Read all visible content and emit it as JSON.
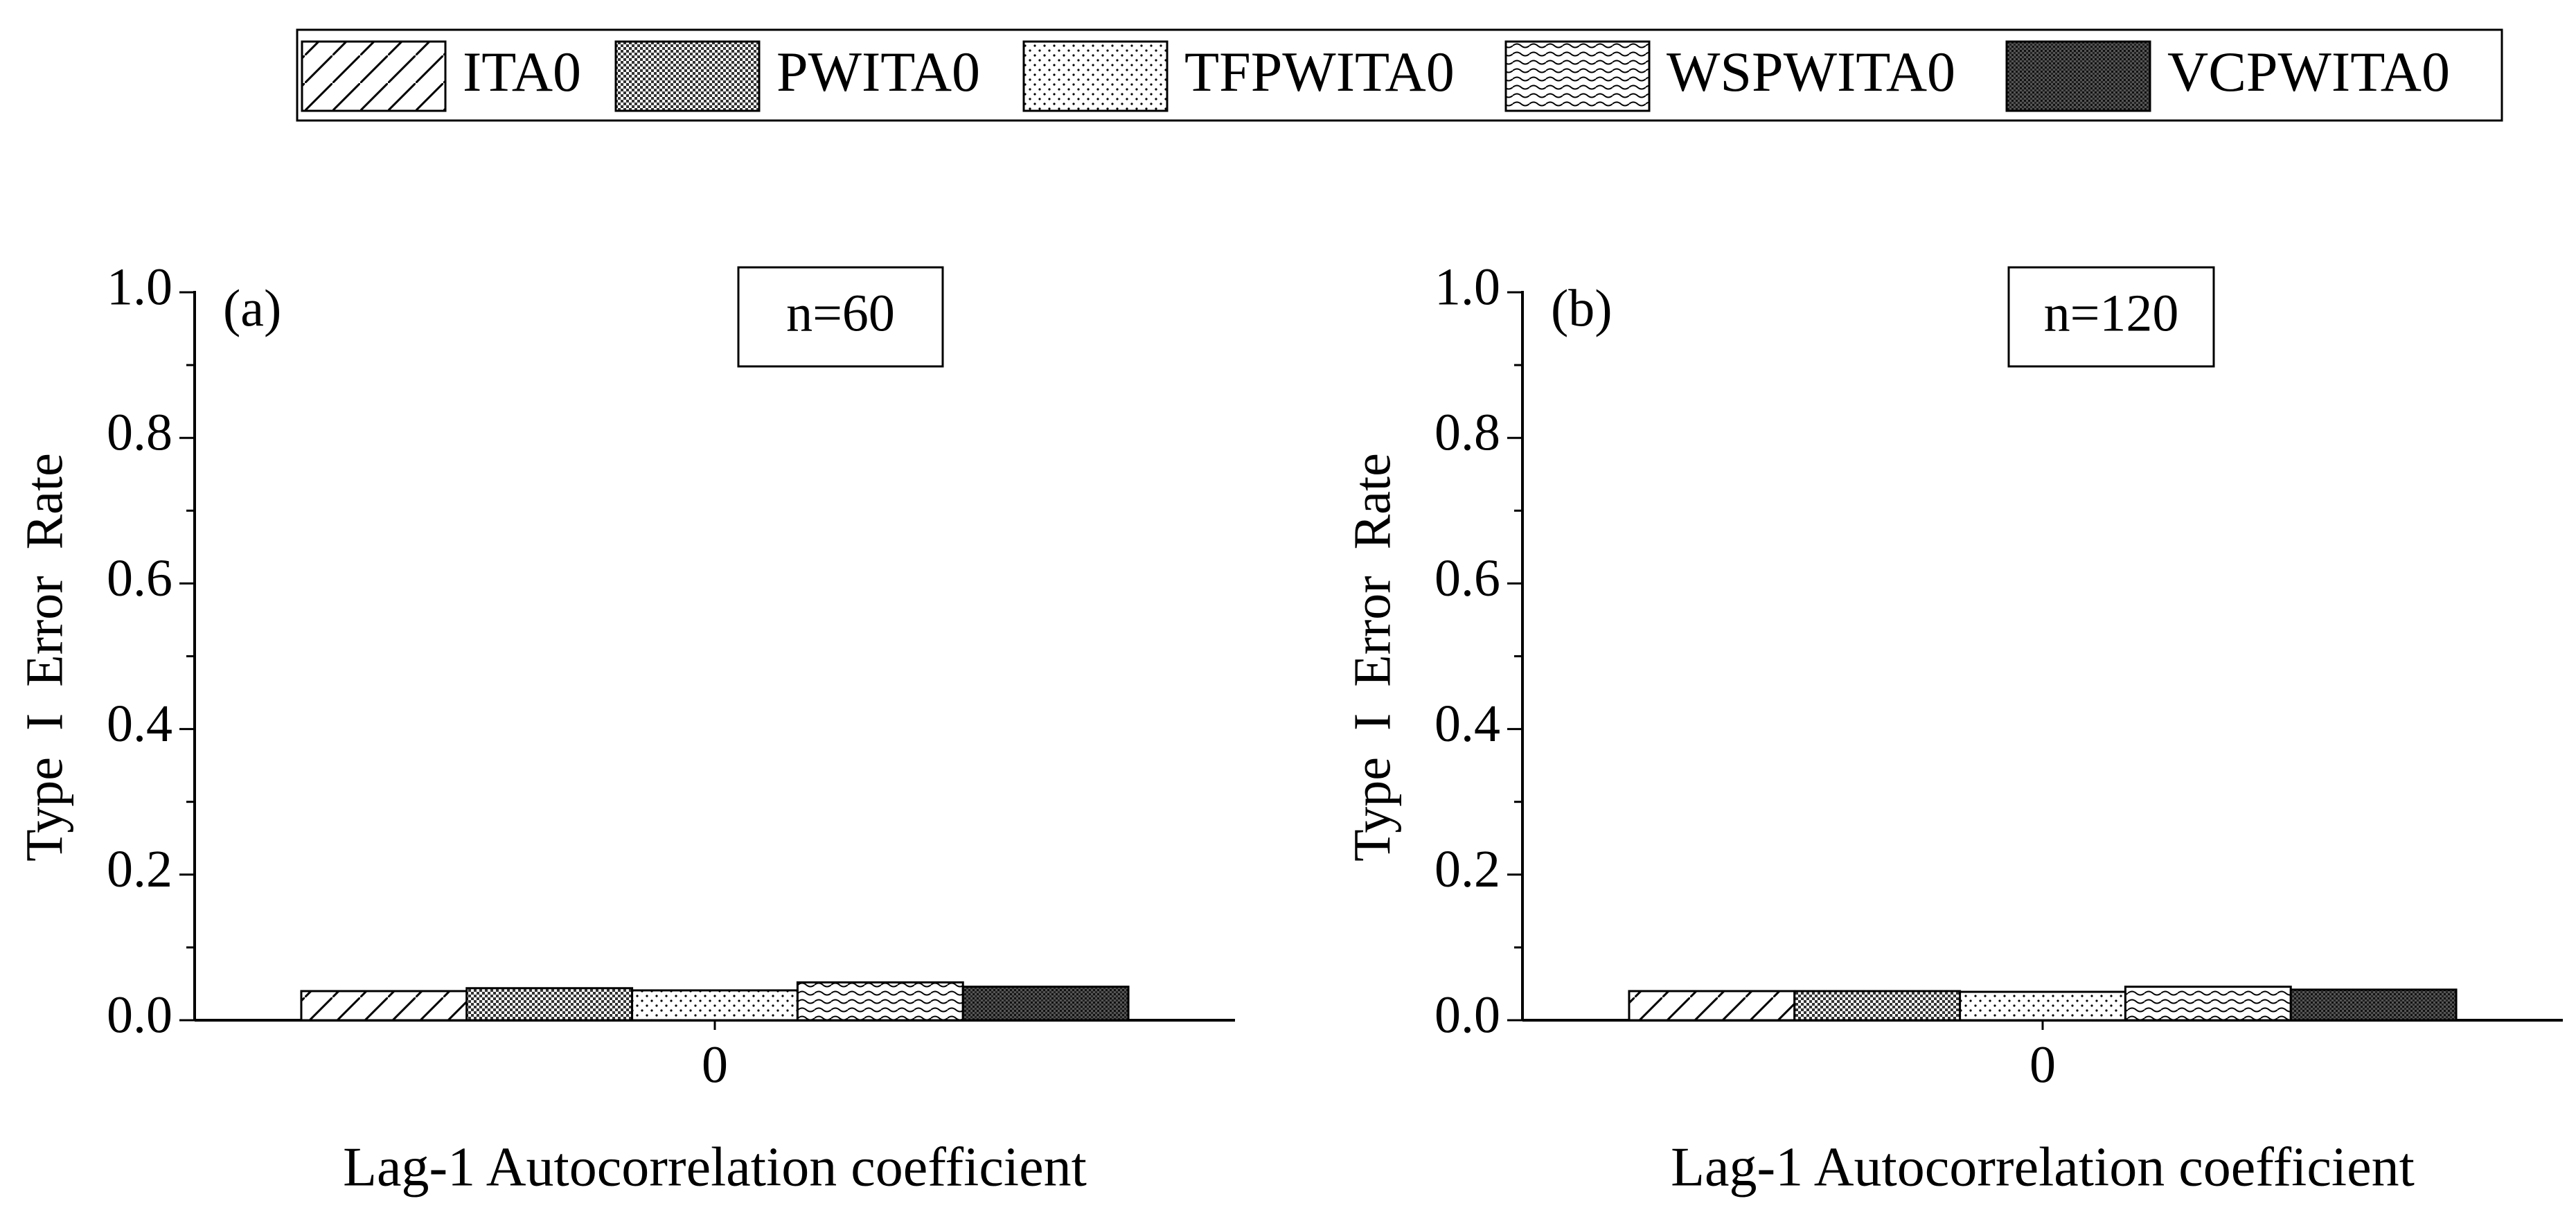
{
  "chart_data": [
    {
      "type": "bar",
      "panel_label": "(a)",
      "annotation": "n=60",
      "ylabel": "Type  I  Error  Rate",
      "xlabel": "Lag-1 Autocorrelation coefficient",
      "categories": [
        "0"
      ],
      "series": [
        {
          "name": "ITA0",
          "pattern": "hatch",
          "values": [
            0.04
          ]
        },
        {
          "name": "PWITA0",
          "pattern": "cross",
          "values": [
            0.044
          ]
        },
        {
          "name": "TFPWITA0",
          "pattern": "dots",
          "values": [
            0.041
          ]
        },
        {
          "name": "WSPWITA0",
          "pattern": "wave",
          "values": [
            0.052
          ]
        },
        {
          "name": "VCPWITA0",
          "pattern": "dense",
          "values": [
            0.046
          ]
        }
      ],
      "ylim": [
        0,
        1
      ],
      "yticks": [
        {
          "value": 0,
          "label": "0.0"
        },
        0.2,
        0.4,
        0.6,
        0.8,
        {
          "value": 1,
          "label": "1.0"
        }
      ]
    },
    {
      "type": "bar",
      "panel_label": "(b)",
      "annotation": "n=120",
      "ylabel": "Type  I  Error  Rate",
      "xlabel": "Lag-1 Autocorrelation coefficient",
      "categories": [
        "0"
      ],
      "series": [
        {
          "pattern": "hatch",
          "values": [
            0.04
          ]
        },
        {
          "pattern": "cross",
          "values": [
            0.04
          ]
        },
        {
          "pattern": "dots",
          "values": [
            0.039
          ]
        },
        {
          "pattern": "wave",
          "values": [
            0.046
          ]
        },
        {
          "pattern": "dense",
          "values": [
            0.042
          ]
        }
      ],
      "ylim": [
        0,
        1
      ],
      "yticks": [
        {
          "value": 0,
          "label": "0.0"
        },
        0.2,
        0.4,
        0.6,
        0.8,
        {
          "value": 1,
          "label": "1.0"
        }
      ]
    }
  ]
}
